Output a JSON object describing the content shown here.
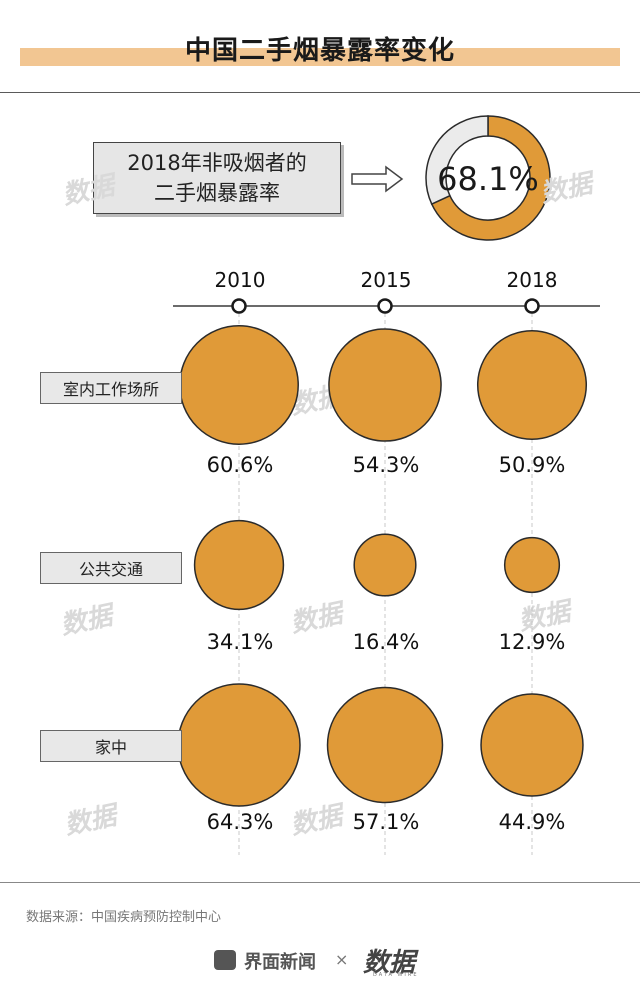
{
  "header": {
    "title": "中国二手烟暴露率变化"
  },
  "headline": {
    "line1": "2018年非吸烟者的",
    "line2": "二手烟暴露率",
    "value_text": "68.1%"
  },
  "chart_data": [
    {
      "type": "pie",
      "values": [
        68.1,
        31.9
      ],
      "value_text": "68.1%",
      "colors": [
        "#e09a38",
        "#ebebeb"
      ]
    },
    {
      "type": "bubble",
      "categories": [
        "2010",
        "2015",
        "2018"
      ],
      "series": [
        {
          "name": "室内工作场所",
          "values": [
            60.6,
            54.3,
            50.9
          ],
          "labels": [
            "60.6%",
            "54.3%",
            "50.9%"
          ]
        },
        {
          "name": "公共交通",
          "values": [
            34.1,
            16.4,
            12.9
          ],
          "labels": [
            "34.1%",
            "16.4%",
            "12.9%"
          ]
        },
        {
          "name": "家中",
          "values": [
            64.3,
            57.1,
            44.9
          ],
          "labels": [
            "64.3%",
            "57.1%",
            "44.9%"
          ]
        }
      ],
      "colors": {
        "fill": "#e09a38",
        "stroke": "#2b2b2b"
      }
    }
  ],
  "footer": {
    "source": "数据来源：中国疾病预防控制中心",
    "brand1": "界面新闻",
    "separator": "×",
    "brand2": "数据",
    "brand2_sub": "DATA WIRE"
  },
  "watermark": "数据"
}
